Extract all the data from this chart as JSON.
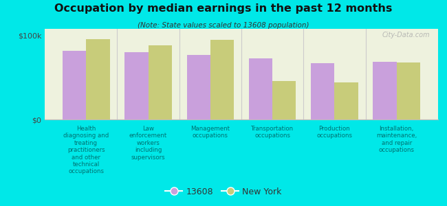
{
  "title": "Occupation by median earnings in the past 12 months",
  "subtitle": "(Note: State values scaled to 13608 population)",
  "background_color": "#00e8e8",
  "plot_bg_color": "#eef2de",
  "categories": [
    "Health\ndiagnosing and\ntreating\npractitioners\nand other\ntechnical\noccupations",
    "Law\nenforcement\nworkers\nincluding\nsupervisors",
    "Management\noccupations",
    "Transportation\noccupations",
    "Production\noccupations",
    "Installation,\nmaintenance,\nand repair\noccupations"
  ],
  "values_13608": [
    82000,
    80000,
    77000,
    73000,
    67000,
    69000
  ],
  "values_ny": [
    96000,
    88000,
    95000,
    46000,
    44000,
    68000
  ],
  "color_13608": "#c9a0dc",
  "color_ny": "#c8cc7a",
  "ylim": [
    0,
    108000
  ],
  "yticks": [
    0,
    100000
  ],
  "ytick_labels": [
    "$0",
    "$100k"
  ],
  "legend_13608": "13608",
  "legend_ny": "New York",
  "watermark": "City-Data.com",
  "separator_color": "#cccccc",
  "bar_width": 0.38
}
